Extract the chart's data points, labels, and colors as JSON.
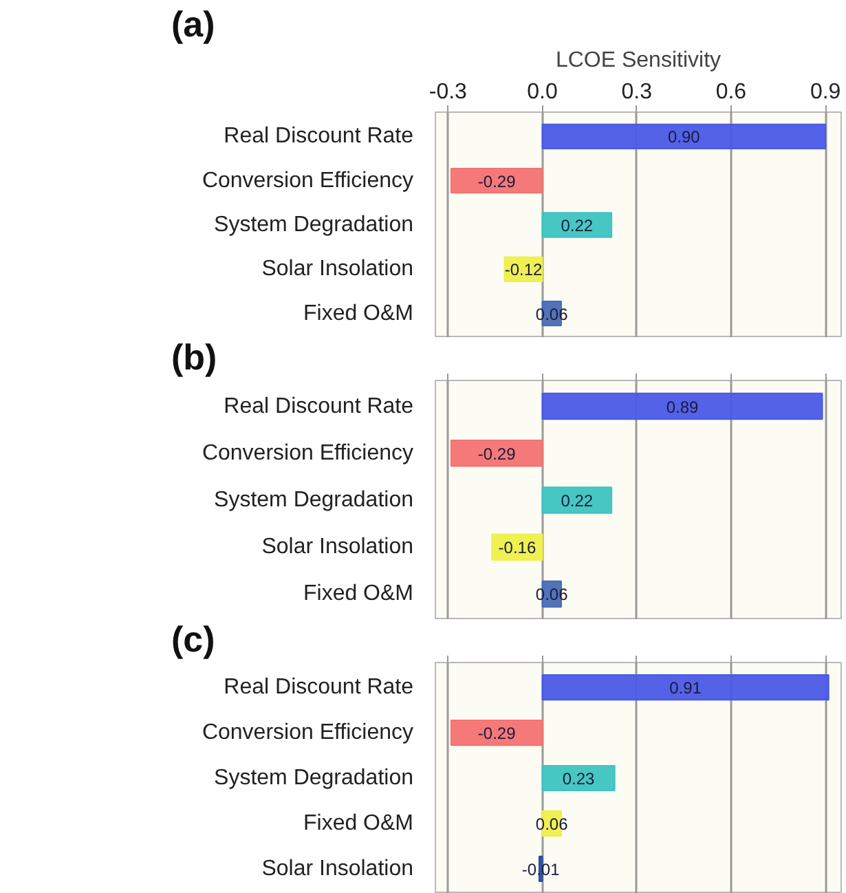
{
  "chart_data": [
    {
      "type": "bar",
      "orientation": "horizontal",
      "title": "(a)",
      "xlabel": "LCOE Sensitivity",
      "categories": [
        "Real Discount Rate",
        "Conversion Efficiency",
        "System Degradation",
        "Solar Insolation",
        "Fixed O&M"
      ],
      "values": [
        0.9,
        -0.29,
        0.22,
        -0.12,
        0.06
      ],
      "value_labels": [
        "0.90",
        "-0.29",
        "0.22",
        "-0.12",
        "0.06"
      ],
      "colors": [
        "#4a5ae6",
        "#f47272",
        "#3cc4c0",
        "#eef04a",
        "#4a6cb4"
      ],
      "xlim": [
        -0.34,
        0.95
      ],
      "xticks": [
        {
          "value": -0.3,
          "label": "-0.3"
        },
        {
          "value": 0,
          "label": "0.0"
        },
        {
          "value": 0.3,
          "label": "0.3"
        },
        {
          "value": 0.6,
          "label": "0.6"
        },
        {
          "value": 0.9,
          "label": "0.9"
        }
      ],
      "grid": "x"
    },
    {
      "type": "bar",
      "orientation": "horizontal",
      "title": "(b)",
      "categories": [
        "Real Discount Rate",
        "Conversion Efficiency",
        "System Degradation",
        "Solar Insolation",
        "Fixed O&M"
      ],
      "values": [
        0.89,
        -0.29,
        0.22,
        -0.16,
        0.06
      ],
      "value_labels": [
        "0.89",
        "-0.29",
        "0.22",
        "-0.16",
        "0.06"
      ],
      "colors": [
        "#4a5ae6",
        "#f47272",
        "#3cc4c0",
        "#eef04a",
        "#4a6cb4"
      ],
      "xlim": [
        -0.34,
        0.95
      ],
      "xticks": [
        {
          "value": -0.3,
          "label": null
        },
        {
          "value": 0,
          "label": null
        },
        {
          "value": 0.3,
          "label": null
        },
        {
          "value": 0.6,
          "label": null
        },
        {
          "value": 0.9,
          "label": null
        }
      ],
      "grid": "x",
      "tick_labels": "y"
    },
    {
      "type": "bar",
      "orientation": "horizontal",
      "title": "(c)",
      "categories": [
        "Real Discount Rate",
        "Conversion Efficiency",
        "System Degradation",
        "Fixed O&M",
        "Solar Insolation"
      ],
      "values": [
        0.91,
        -0.29,
        0.23,
        0.06,
        -0.01
      ],
      "value_labels": [
        "0.91",
        "-0.29",
        "0.23",
        "0.06",
        "-0.01"
      ],
      "colors": [
        "#4a5ae6",
        "#f47272",
        "#3cc4c0",
        "#eef04a",
        "#2a4ca0"
      ],
      "xlim": [
        -0.34,
        0.95
      ],
      "xticks": [
        {
          "value": -0.3,
          "label": null
        },
        {
          "value": 0,
          "label": null
        },
        {
          "value": 0.3,
          "label": null
        },
        {
          "value": 0.6,
          "label": null
        },
        {
          "value": 0.9,
          "label": null
        }
      ],
      "grid": "x",
      "tick_labels": "y"
    }
  ]
}
